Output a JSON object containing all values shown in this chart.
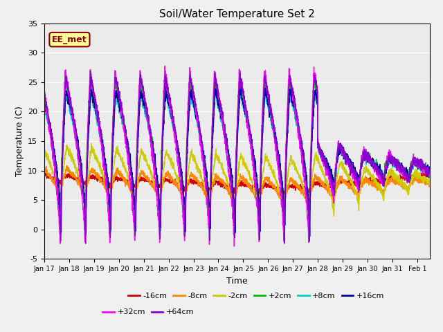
{
  "title": "Soil/Water Temperature Set 2",
  "xlabel": "Time",
  "ylabel": "Temperature (C)",
  "ylim": [
    -5,
    35
  ],
  "background_color": "#f0f0f0",
  "plot_bg": "#ebebeb",
  "annotation_text": "EE_met",
  "annotation_box_color": "#ffff99",
  "annotation_border_color": "#8b0000",
  "series": {
    "-16cm": {
      "color": "#cc0000"
    },
    "-8cm": {
      "color": "#ff8800"
    },
    "-2cm": {
      "color": "#cccc00"
    },
    "+2cm": {
      "color": "#00bb00"
    },
    "+8cm": {
      "color": "#00cccc"
    },
    "+16cm": {
      "color": "#000099"
    },
    "+32cm": {
      "color": "#ff00ff"
    },
    "+64cm": {
      "color": "#8800cc"
    }
  },
  "xtick_labels": [
    "Jan 17",
    "Jan 18",
    "Jan 19",
    "Jan 20",
    "Jan 21",
    "Jan 22",
    "Jan 23",
    "Jan 24",
    "Jan 25",
    "Jan 26",
    "Jan 27",
    "Jan 28",
    "Jan 29",
    "Jan 30",
    "Jan 31",
    "Feb 1"
  ],
  "ytick_vals": [
    -5,
    0,
    5,
    10,
    15,
    20,
    25,
    30,
    35
  ],
  "grid_color": "#ffffff",
  "legend_entries": [
    "-16cm",
    "-8cm",
    "-2cm",
    "+2cm",
    "+8cm",
    "+16cm",
    "+32cm",
    "+64cm"
  ]
}
